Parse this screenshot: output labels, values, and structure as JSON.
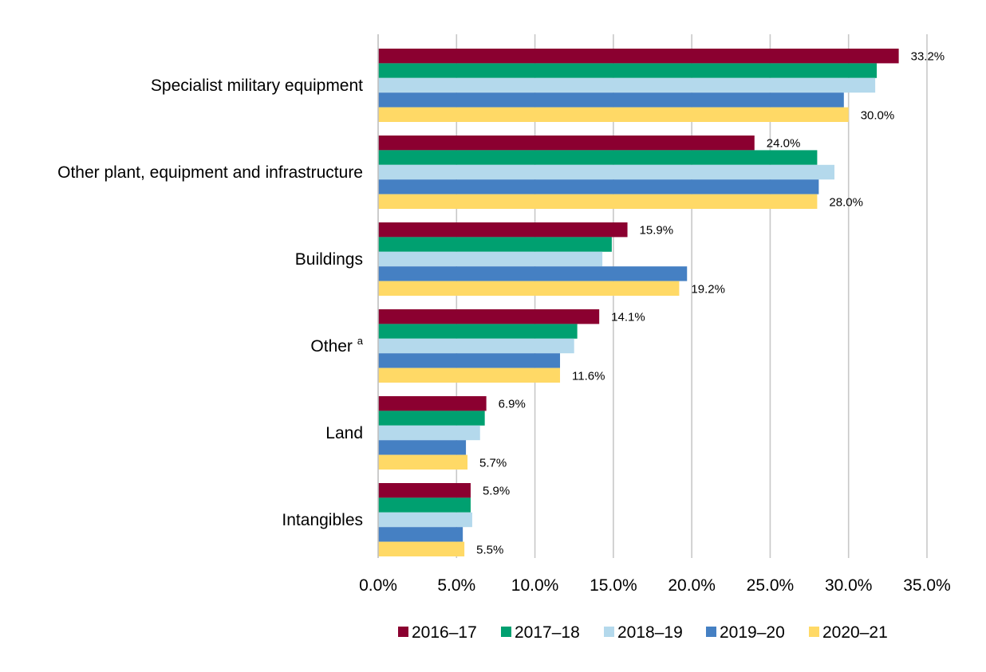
{
  "chart_data": {
    "type": "bar",
    "orientation": "horizontal",
    "categories": [
      {
        "label": "Specialist military equipment",
        "superscript": ""
      },
      {
        "label": "Other plant, equipment and infrastructure",
        "superscript": ""
      },
      {
        "label": "Buildings",
        "superscript": ""
      },
      {
        "label": "Other",
        "superscript": "a"
      },
      {
        "label": "Land",
        "superscript": ""
      },
      {
        "label": "Intangibles",
        "superscript": ""
      }
    ],
    "series": [
      {
        "name": "2016–17",
        "color": "#8B0030",
        "values": [
          33.2,
          24.0,
          15.9,
          14.1,
          6.9,
          5.9
        ]
      },
      {
        "name": "2017–18",
        "color": "#00A070",
        "values": [
          31.8,
          28.0,
          14.9,
          12.7,
          6.8,
          5.9
        ]
      },
      {
        "name": "2018–19",
        "color": "#B4D9EC",
        "values": [
          31.7,
          29.1,
          14.3,
          12.5,
          6.5,
          6.0
        ]
      },
      {
        "name": "2019–20",
        "color": "#4580C3",
        "values": [
          29.7,
          28.1,
          19.7,
          11.6,
          5.6,
          5.4
        ]
      },
      {
        "name": "2020–21",
        "color": "#FFD966",
        "values": [
          30.0,
          28.0,
          19.2,
          11.6,
          5.7,
          5.5
        ]
      }
    ],
    "data_labels": {
      "first_series": [
        "33.2%",
        "24.0%",
        "15.9%",
        "14.1%",
        "6.9%",
        "5.9%"
      ],
      "last_series": [
        "30.0%",
        "28.0%",
        "19.2%",
        "11.6%",
        "5.7%",
        "5.5%"
      ]
    },
    "x_ticks": [
      "0.0%",
      "5.0%",
      "10.0%",
      "15.0%",
      "20.0%",
      "25.0%",
      "30.0%",
      "35.0%"
    ],
    "xlim": [
      0,
      35
    ],
    "grid": true,
    "legend_position": "bottom",
    "title": "",
    "xlabel": "",
    "ylabel": ""
  }
}
